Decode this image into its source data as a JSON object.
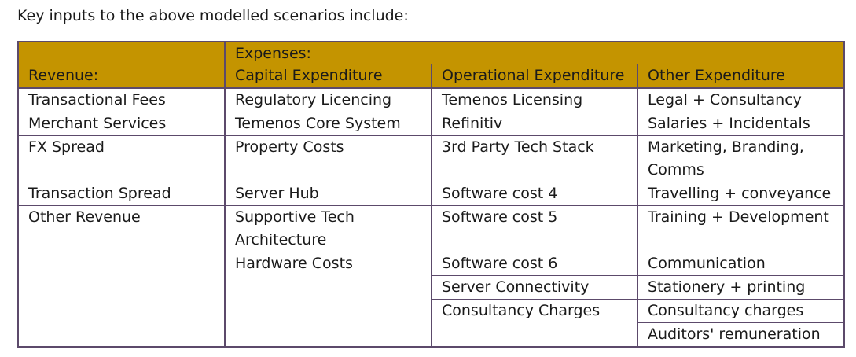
{
  "intro": "Key inputs to the above modelled scenarios include:",
  "headers": {
    "expenses": "Expenses:",
    "revenue": "Revenue:",
    "capex": "Capital Expenditure",
    "opex": "Operational Expenditure",
    "other": "Other Expenditure"
  },
  "rows": [
    {
      "revenue": "Transactional Fees",
      "capex": "Regulatory Licencing",
      "opex": "Temenos Licensing",
      "other": "Legal + Consultancy"
    },
    {
      "revenue": "Merchant Services",
      "capex": "Temenos Core System",
      "opex": "Refinitiv",
      "other": "Salaries + Incidentals"
    },
    {
      "revenue": "FX Spread",
      "capex": "Property Costs",
      "opex": "3rd Party Tech Stack",
      "other": "Marketing, Branding, Comms"
    },
    {
      "revenue": "Transaction Spread",
      "capex": "Server Hub",
      "opex": "Software cost 4",
      "other": "Travelling + conveyance"
    },
    {
      "revenue": "Other Revenue",
      "capex": "Supportive Tech Architecture",
      "opex": "Software cost 5",
      "other": "Training + Development"
    },
    {
      "revenue": "",
      "capex": "Hardware Costs",
      "opex": "Software cost 6",
      "other": "Communication"
    },
    {
      "revenue": "",
      "capex": "",
      "opex": "Server Connectivity",
      "other": "Stationery + printing"
    },
    {
      "revenue": "",
      "capex": "",
      "opex": "Consultancy Charges",
      "other": "Consultancy charges"
    },
    {
      "revenue": "",
      "capex": "",
      "opex": "",
      "other": "Auditors' remuneration"
    }
  ],
  "colors": {
    "header_fill": "#c49400",
    "border": "#5c4a6b"
  }
}
